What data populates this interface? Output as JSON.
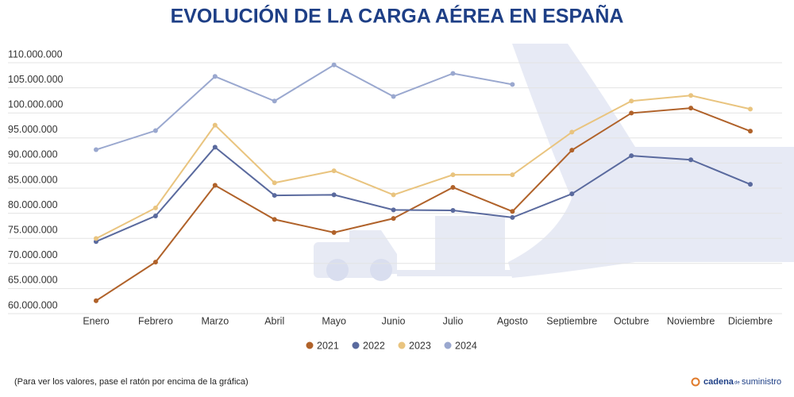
{
  "chart_data": {
    "type": "line",
    "title": "EVOLUCIÓN DE LA CARGA AÉREA EN ESPAÑA",
    "categories": [
      "Enero",
      "Febrero",
      "Marzo",
      "Abril",
      "Mayo",
      "Junio",
      "Julio",
      "Agosto",
      "Septiembre",
      "Octubre",
      "Noviembre",
      "Diciembre"
    ],
    "series": [
      {
        "name": "2021",
        "color": "#b0622a",
        "values": [
          61300000,
          69000000,
          84300000,
          77500000,
          74900000,
          77700000,
          83900000,
          79100000,
          91300000,
          98700000,
          99700000,
          95100000
        ]
      },
      {
        "name": "2022",
        "color": "#5a6a9e",
        "values": [
          73100000,
          78200000,
          91900000,
          82300000,
          82400000,
          79400000,
          79300000,
          77900000,
          82600000,
          90200000,
          89400000,
          84500000
        ]
      },
      {
        "name": "2023",
        "color": "#e9c47f",
        "values": [
          73700000,
          79800000,
          96300000,
          84800000,
          87200000,
          82400000,
          86400000,
          86400000,
          94900000,
          101100000,
          102200000,
          99500000
        ]
      },
      {
        "name": "2024",
        "color": "#9aa8cf",
        "values": [
          91400000,
          95200000,
          106000000,
          101100000,
          108300000,
          102000000,
          106600000,
          104400000,
          null,
          null,
          null,
          null
        ]
      }
    ],
    "ylim": [
      60000000,
      110000000
    ],
    "yticks": [
      {
        "value": 60000000,
        "label": "60.000.000"
      },
      {
        "value": 65000000,
        "label": "65.000.000"
      },
      {
        "value": 70000000,
        "label": "70.000.000"
      },
      {
        "value": 75000000,
        "label": "75.000.000"
      },
      {
        "value": 80000000,
        "label": "80.000.000"
      },
      {
        "value": 85000000,
        "label": "85.000.000"
      },
      {
        "value": 90000000,
        "label": "90.000.000"
      },
      {
        "value": 95000000,
        "label": "95.000.000"
      },
      {
        "value": 100000000,
        "label": "100.000.000"
      },
      {
        "value": 105000000,
        "label": "105.000.000"
      },
      {
        "value": 110000000,
        "label": "110.000.000"
      }
    ],
    "grid": true,
    "legend": "bottom",
    "footnote": "(Para ver los valores, pase el ratón por encima de la gráfica)",
    "logo": [
      "cadena",
      "de",
      "suministro"
    ]
  }
}
